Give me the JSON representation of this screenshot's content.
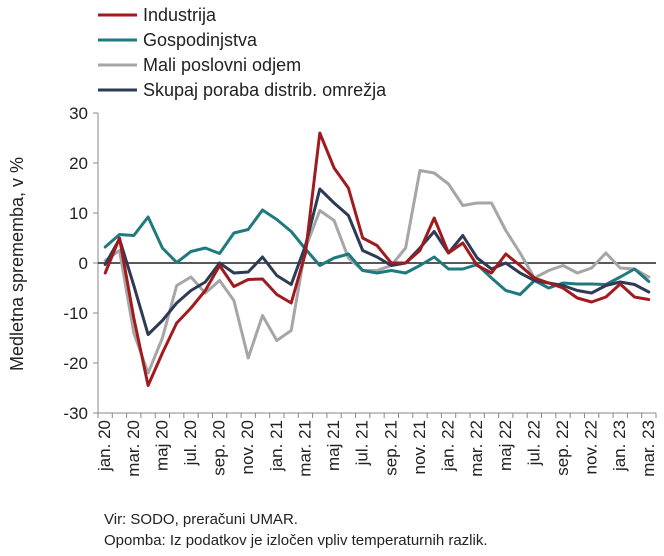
{
  "chart_data": {
    "type": "line",
    "ylabel": "Medletna sprememba, v %",
    "ylim": [
      -30,
      30
    ],
    "yticks": [
      30,
      20,
      10,
      0,
      -10,
      -20,
      -30
    ],
    "x": [
      "jan. 20",
      "feb. 20",
      "mar. 20",
      "apr. 20",
      "maj 20",
      "jun. 20",
      "jul. 20",
      "avg. 20",
      "sep. 20",
      "okt. 20",
      "nov. 20",
      "dec. 20",
      "jan. 21",
      "feb. 21",
      "mar. 21",
      "apr. 21",
      "maj 21",
      "jun. 21",
      "jul. 21",
      "avg. 21",
      "sep. 21",
      "okt. 21",
      "nov. 21",
      "dec. 21",
      "jan. 22",
      "feb. 22",
      "mar. 22",
      "apr. 22",
      "maj 22",
      "jun. 22",
      "jul. 22",
      "avg. 22",
      "sep. 22",
      "okt. 22",
      "nov. 22",
      "dec. 22",
      "jan. 23",
      "feb. 23",
      "mar. 23"
    ],
    "xtick_labels": [
      "jan. 20",
      "mar. 20",
      "maj 20",
      "jul. 20",
      "sep. 20",
      "nov. 20",
      "jan. 21",
      "mar. 21",
      "maj 21",
      "jul. 21",
      "sep. 21",
      "nov. 21",
      "jan. 22",
      "mar. 22",
      "maj 22",
      "jul. 22",
      "sep. 22",
      "nov. 22",
      "jan. 23",
      "mar. 23"
    ],
    "legend_position": "top-left",
    "grid": false,
    "series": [
      {
        "name": "Industrija",
        "color": "#a11a1e",
        "values": [
          -2,
          5,
          -11,
          -24.5,
          -18,
          -12,
          -9,
          -5.5,
          -0.5,
          -4.7,
          -3.3,
          -3.2,
          -6.3,
          -8,
          2,
          26,
          19,
          15,
          5,
          3.5,
          0,
          0,
          2.5,
          9,
          2,
          4,
          -0.5,
          -2,
          1.8,
          -0.5,
          -3,
          -4,
          -5,
          -7,
          -7.8,
          -6.8,
          -4.2,
          -6.8,
          -7.3
        ]
      },
      {
        "name": "Gospodinjstva",
        "color": "#1f7a7f",
        "values": [
          3.2,
          5.7,
          5.5,
          9.2,
          3,
          0.1,
          2.3,
          3,
          1.9,
          6,
          6.7,
          10.6,
          8.7,
          6.3,
          2.8,
          -0.5,
          1,
          1.8,
          -1.5,
          -2,
          -1.5,
          -2,
          -0.5,
          1.2,
          -1.2,
          -1.2,
          -0.3,
          -3,
          -5.5,
          -6.3,
          -3.5,
          -5,
          -4,
          -4.2,
          -4.2,
          -4.3,
          -2.8,
          -1.2,
          -3.7
        ]
      },
      {
        "name": "Mali poslovni odjem",
        "color": "#a6a6a6",
        "values": [
          0.5,
          2.5,
          -14,
          -22,
          -15,
          -4.5,
          -2.8,
          -6,
          -3.5,
          -7.5,
          -19,
          -10.5,
          -15.5,
          -13.5,
          3,
          10.5,
          8.5,
          1,
          -1.5,
          -1.5,
          -0.5,
          3,
          18.5,
          18,
          15.8,
          11.5,
          12,
          12,
          6.5,
          2,
          -3,
          -1.5,
          -0.5,
          -2,
          -1,
          2,
          -1,
          -1.2,
          -2.8
        ]
      },
      {
        "name": "Skupaj poraba distrib. omrežja",
        "color": "#2e3b55",
        "values": [
          -0.3,
          4.8,
          -4.5,
          -14.3,
          -11.5,
          -8,
          -5.5,
          -3.8,
          0,
          -2,
          -1.8,
          1.2,
          -2.5,
          -4.3,
          3.5,
          14.8,
          12,
          9.5,
          2.5,
          1.2,
          -0.5,
          0,
          3,
          6.3,
          2,
          5.5,
          1,
          -1.2,
          0,
          -2,
          -3.5,
          -4,
          -4.5,
          -5.5,
          -6,
          -4.5,
          -3.8,
          -4.3,
          -5.8
        ]
      }
    ]
  },
  "footnotes": {
    "source": "Vir: SODO, preračuni UMAR.",
    "note": "Opomba: Iz podatkov je izločen vpliv temperaturnih razlik."
  }
}
